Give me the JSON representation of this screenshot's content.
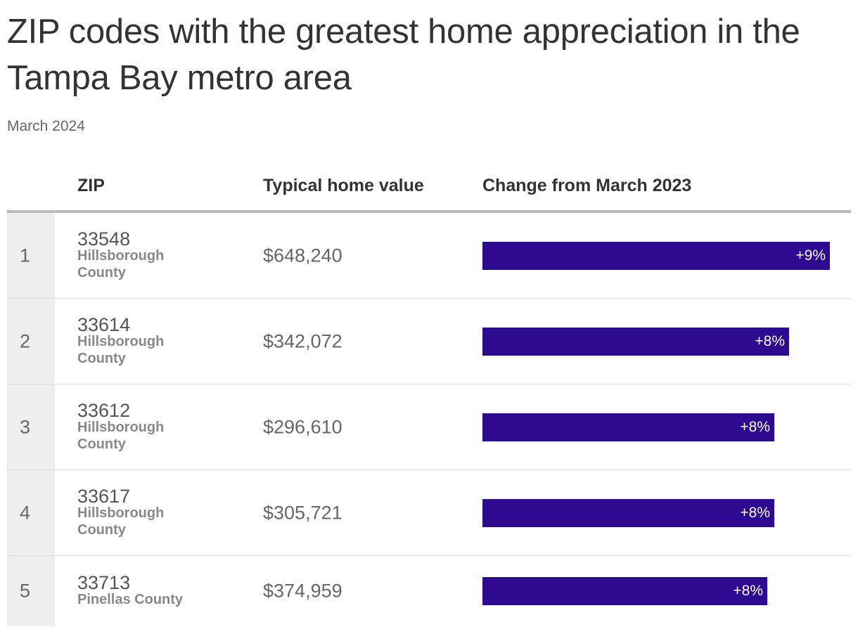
{
  "title": "ZIP codes with the greatest home appreciation in the Tampa Bay metro area",
  "subtitle": "March 2024",
  "columns": {
    "zip": "ZIP",
    "value": "Typical home value",
    "change": "Change from March 2023"
  },
  "rows": [
    {
      "rank": "1",
      "zip": "33548",
      "county": "Hillsborough County",
      "value": "$648,240",
      "change_label": "+9%"
    },
    {
      "rank": "2",
      "zip": "33614",
      "county": "Hillsborough County",
      "value": "$342,072",
      "change_label": "+8%"
    },
    {
      "rank": "3",
      "zip": "33612",
      "county": "Hillsborough County",
      "value": "$296,610",
      "change_label": "+8%"
    },
    {
      "rank": "4",
      "zip": "33617",
      "county": "Hillsborough County",
      "value": "$305,721",
      "change_label": "+8%"
    },
    {
      "rank": "5",
      "zip": "33713",
      "county": "Pinellas County",
      "value": "$374,959",
      "change_label": "+8%"
    }
  ],
  "chart_data": {
    "type": "bar",
    "orientation": "horizontal",
    "categories": [
      "33548",
      "33614",
      "33612",
      "33617",
      "33713"
    ],
    "values": [
      9.4,
      8.3,
      7.9,
      7.9,
      7.7
    ],
    "unit": "%",
    "xlim": [
      0,
      9.7
    ],
    "bar_color": "#2d0a8f",
    "grid": false
  }
}
